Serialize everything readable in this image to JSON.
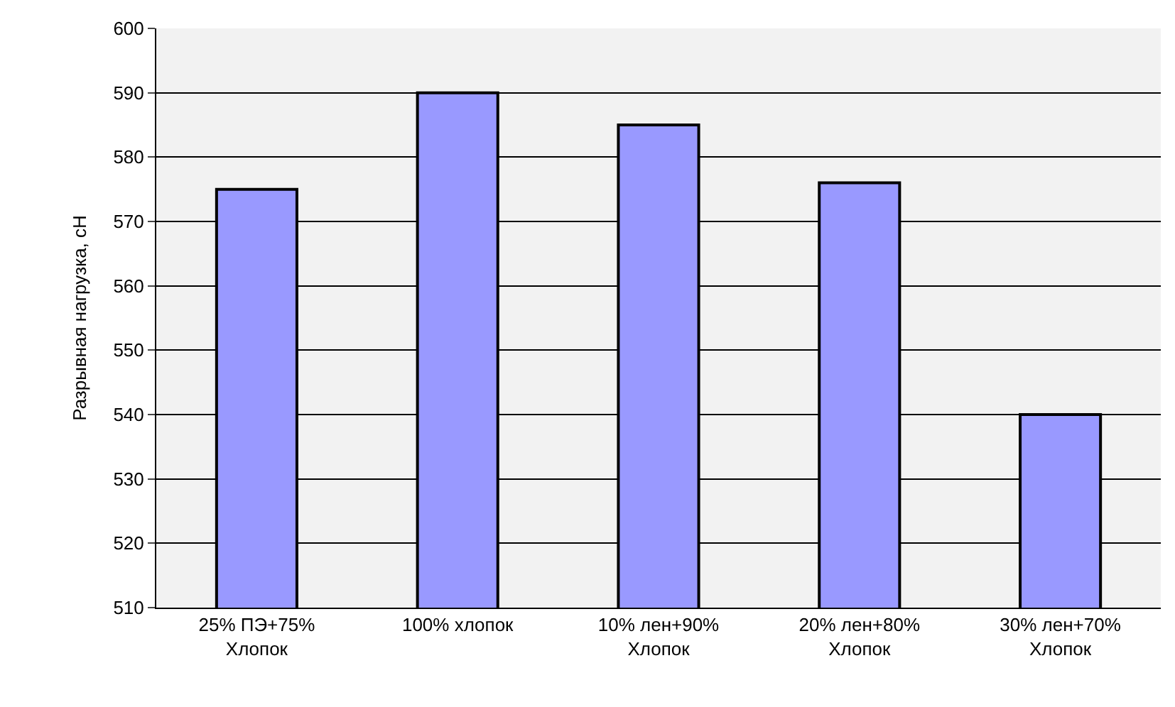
{
  "chart_data": {
    "type": "bar",
    "ylabel": "Разрывная нагрузка, сН",
    "categories": [
      "25% ПЭ+75%\nХлопок",
      "100% хлопок",
      "10% лен+90%\nХлопок",
      "20% лен+80%\nХлопок",
      "30% лен+70%\nХлопок"
    ],
    "values": [
      575,
      590,
      585,
      576,
      540
    ],
    "color": "#9999ff",
    "ylim": [
      510,
      600
    ],
    "yticks": [
      510,
      520,
      530,
      540,
      550,
      560,
      570,
      580,
      590,
      600
    ],
    "grid": "y"
  }
}
